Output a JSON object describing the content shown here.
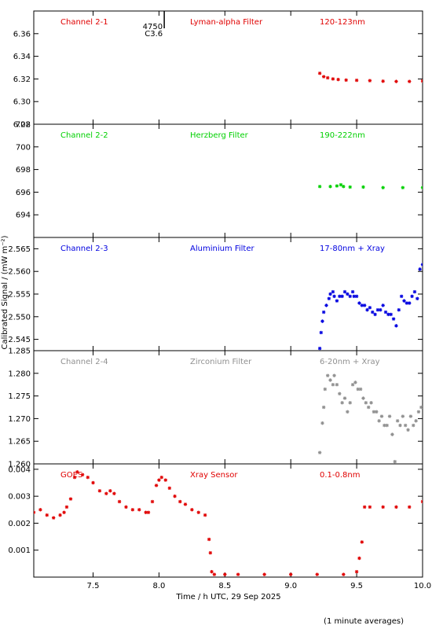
{
  "y_axis_title": "Calibrated Signal / (mW m⁻²)",
  "x_axis_title": "Time / h UTC, 29 Sep 2025",
  "footer_note": "(1 minute averages)",
  "x_ticks": [
    "7.5",
    "8.0",
    "8.5",
    "9.0",
    "9.5",
    "10.0"
  ],
  "chart_data": [
    {
      "type": "scatter",
      "channel_label": "Channel 2-1",
      "filter_label": "Lyman-alpha Filter",
      "band_label": "120-123nm",
      "color": "#e00000",
      "xlim": [
        7.05,
        10.0
      ],
      "ylim": [
        6.28,
        6.38
      ],
      "y_ticks": [
        "6.28",
        "6.30",
        "6.32",
        "6.34",
        "6.36"
      ],
      "marker": {
        "x": 8.04,
        "labels": [
          "4750",
          "C3.6"
        ]
      },
      "series": [
        {
          "x": [
            9.22,
            9.25,
            9.28,
            9.32,
            9.36,
            9.42,
            9.5,
            9.6,
            9.7,
            9.8,
            9.9,
            10.0
          ],
          "y": [
            6.325,
            6.322,
            6.321,
            6.32,
            6.3195,
            6.319,
            6.3188,
            6.3185,
            6.318,
            6.3178,
            6.3178,
            6.3182
          ]
        }
      ]
    },
    {
      "type": "scatter",
      "channel_label": "Channel 2-2",
      "filter_label": "Herzberg Filter",
      "band_label": "190-222nm",
      "color": "#00d000",
      "xlim": [
        7.05,
        10.0
      ],
      "ylim": [
        692,
        702
      ],
      "y_ticks": [
        "694",
        "696",
        "698",
        "700",
        "702"
      ],
      "series": [
        {
          "x": [
            9.22,
            9.3,
            9.35,
            9.38,
            9.4,
            9.45,
            9.55,
            9.7,
            9.85,
            10.0
          ],
          "y": [
            696.5,
            696.5,
            696.55,
            696.65,
            696.5,
            696.45,
            696.45,
            696.4,
            696.4,
            696.4
          ]
        }
      ]
    },
    {
      "type": "scatter",
      "channel_label": "Channel 2-3",
      "filter_label": "Aluminium Filter",
      "band_label": "17-80nm + Xray",
      "color": "#0000e0",
      "xlim": [
        7.05,
        10.0
      ],
      "ylim": [
        2.5425,
        2.5675
      ],
      "y_ticks": [
        "2.545",
        "2.550",
        "2.555",
        "2.560",
        "2.565"
      ],
      "series": [
        {
          "x": [
            9.22,
            9.23,
            9.24,
            9.25,
            9.27,
            9.29,
            9.3,
            9.32,
            9.33,
            9.35,
            9.37,
            9.39,
            9.41,
            9.43,
            9.45,
            9.47,
            9.48,
            9.5,
            9.52,
            9.54,
            9.56,
            9.58,
            9.6,
            9.62,
            9.64,
            9.66,
            9.68,
            9.7,
            9.72,
            9.74,
            9.76,
            9.78,
            9.8,
            9.82,
            9.84,
            9.86,
            9.88,
            9.9,
            9.92,
            9.94,
            9.96,
            9.98,
            10.0
          ],
          "y": [
            2.543,
            2.5465,
            2.549,
            2.551,
            2.5525,
            2.554,
            2.555,
            2.5555,
            2.5545,
            2.5535,
            2.5545,
            2.5545,
            2.5555,
            2.555,
            2.5545,
            2.5555,
            2.5545,
            2.5545,
            2.553,
            2.5525,
            2.5525,
            2.5515,
            2.552,
            2.551,
            2.5505,
            2.5515,
            2.5515,
            2.5525,
            2.551,
            2.5505,
            2.5505,
            2.5495,
            2.548,
            2.5515,
            2.5545,
            2.5535,
            2.553,
            2.553,
            2.5545,
            2.5555,
            2.554,
            2.5605,
            2.5615
          ]
        }
      ]
    },
    {
      "type": "scatter",
      "channel_label": "Channel 2-4",
      "filter_label": "Zirconium Filter",
      "band_label": "6-20nm + Xray",
      "color": "#909090",
      "xlim": [
        7.05,
        10.0
      ],
      "ylim": [
        1.26,
        1.285
      ],
      "y_ticks": [
        "1.260",
        "1.265",
        "1.270",
        "1.275",
        "1.280",
        "1.285"
      ],
      "series": [
        {
          "x": [
            9.22,
            9.24,
            9.25,
            9.26,
            9.28,
            9.3,
            9.32,
            9.33,
            9.35,
            9.37,
            9.39,
            9.41,
            9.43,
            9.45,
            9.47,
            9.49,
            9.51,
            9.53,
            9.55,
            9.57,
            9.59,
            9.61,
            9.63,
            9.65,
            9.67,
            9.69,
            9.71,
            9.73,
            9.75,
            9.77,
            9.79,
            9.81,
            9.83,
            9.85,
            9.87,
            9.89,
            9.91,
            9.93,
            9.95,
            9.97,
            9.99
          ],
          "y": [
            1.2625,
            1.269,
            1.2725,
            1.2765,
            1.2795,
            1.2785,
            1.2775,
            1.2795,
            1.2775,
            1.2755,
            1.2735,
            1.2745,
            1.2715,
            1.2735,
            1.2775,
            1.278,
            1.2765,
            1.2765,
            1.2745,
            1.2735,
            1.2725,
            1.2735,
            1.2715,
            1.2715,
            1.2695,
            1.2705,
            1.2685,
            1.2685,
            1.2705,
            1.2665,
            1.2605,
            1.2695,
            1.2685,
            1.2705,
            1.2685,
            1.2675,
            1.2705,
            1.2685,
            1.2695,
            1.2715,
            1.2725
          ]
        }
      ]
    },
    {
      "type": "scatter",
      "channel_label": "GOES",
      "filter_label": "Xray Sensor",
      "band_label": "0.1-0.8nm",
      "color": "#e00000",
      "xlim": [
        7.05,
        10.0
      ],
      "ylim": [
        0.0,
        0.0042
      ],
      "y_ticks": [
        "0.001",
        "0.002",
        "0.003",
        "0.004"
      ],
      "series": [
        {
          "x": [
            7.05,
            7.1,
            7.15,
            7.2,
            7.25,
            7.28,
            7.3,
            7.33,
            7.36,
            7.38,
            7.42,
            7.46,
            7.5,
            7.55,
            7.6,
            7.63,
            7.66,
            7.7,
            7.75,
            7.8,
            7.85,
            7.9,
            7.92,
            7.95,
            7.98,
            8.0,
            8.02,
            8.05,
            8.08,
            8.12,
            8.16,
            8.2,
            8.25,
            8.3,
            8.35,
            8.38,
            8.39,
            8.4,
            8.42,
            8.5,
            8.6,
            8.8,
            9.0,
            9.2,
            9.4,
            9.5,
            9.52,
            9.54,
            9.56,
            9.6,
            9.7,
            9.8,
            9.9,
            10.0
          ],
          "y": [
            0.0024,
            0.0025,
            0.0023,
            0.0022,
            0.0023,
            0.0024,
            0.0026,
            0.0029,
            0.0037,
            0.0039,
            0.0038,
            0.0037,
            0.0035,
            0.0032,
            0.0031,
            0.0032,
            0.0031,
            0.0028,
            0.0026,
            0.0025,
            0.0025,
            0.0024,
            0.0024,
            0.0028,
            0.0034,
            0.0036,
            0.0037,
            0.0036,
            0.0033,
            0.003,
            0.0028,
            0.0027,
            0.0025,
            0.0024,
            0.0023,
            0.0014,
            0.0009,
            0.0002,
            0.0001,
            0.0001,
            0.0001,
            0.0001,
            0.0001,
            0.0001,
            0.0001,
            0.0002,
            0.0007,
            0.0013,
            0.0026,
            0.0026,
            0.0026,
            0.0026,
            0.0026,
            0.0028
          ]
        }
      ]
    }
  ]
}
